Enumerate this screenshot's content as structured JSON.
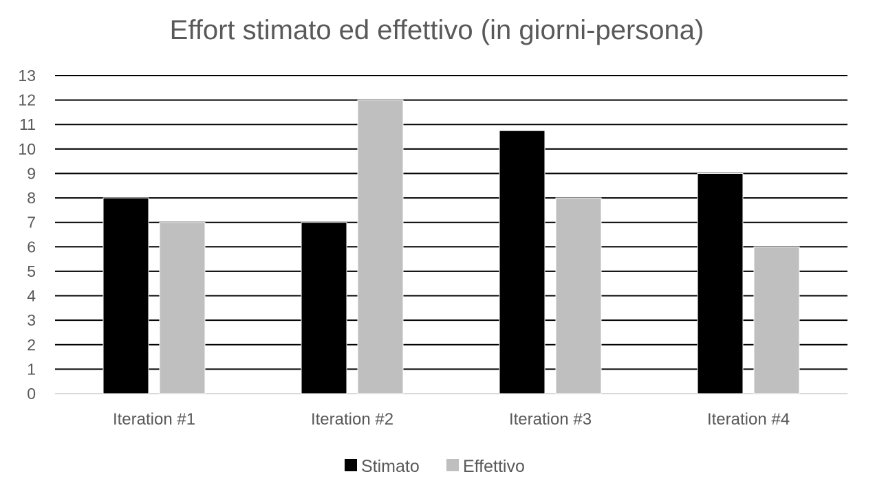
{
  "chart_data": {
    "type": "bar",
    "title": "Effort stimato ed effettivo (in giorni-persona)",
    "xlabel": "",
    "ylabel": "",
    "categories": [
      "Iteration #1",
      "Iteration #2",
      "Iteration #3",
      "Iteration #4"
    ],
    "series": [
      {
        "name": "Stimato",
        "values": [
          8,
          7,
          10.75,
          9
        ],
        "color": "#000000"
      },
      {
        "name": "Effettivo",
        "values": [
          7,
          12,
          8,
          6
        ],
        "color": "#bfbfbf"
      }
    ],
    "ylim": [
      0,
      13
    ],
    "yticks": [
      0,
      1,
      2,
      3,
      4,
      5,
      6,
      7,
      8,
      9,
      10,
      11,
      12,
      13
    ],
    "grid": true,
    "legend": "bottom"
  }
}
